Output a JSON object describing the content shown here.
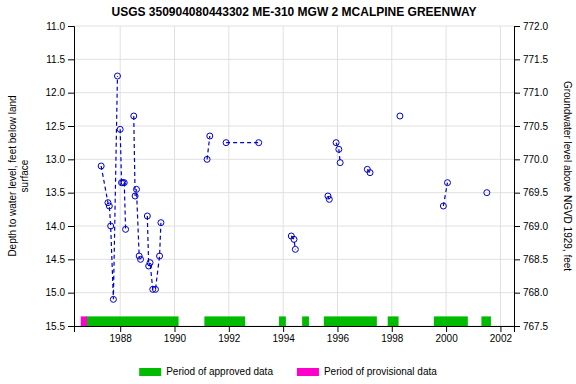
{
  "chart_data": {
    "type": "line",
    "title": "USGS 350904080443302 ME-310 MGW 2 MCALPINE GREENWAY",
    "ylabel": "Depth to water level, feet below land\nsurface",
    "y2label": "Groundwater level above NGVD 1929, feet",
    "xlim": [
      1986.3,
      2002.5
    ],
    "xticks": [
      1988,
      1990,
      1992,
      1994,
      1996,
      1998,
      2000,
      2002
    ],
    "ylim": [
      15.5,
      11.0
    ],
    "yticks": [
      {
        "value": 11.0,
        "label": "11.0"
      },
      11.5,
      {
        "value": 12.0,
        "label": "12.0"
      },
      12.5,
      {
        "value": 13.0,
        "label": "13.0"
      },
      13.5,
      {
        "value": 14.0,
        "label": "14.0"
      },
      14.5,
      {
        "value": 15.0,
        "label": "15.0"
      },
      15.5
    ],
    "y2lim": [
      767.5,
      772.0
    ],
    "y2ticks": [
      767.5,
      {
        "value": 768.0,
        "label": "768.0"
      },
      768.5,
      {
        "value": 769.0,
        "label": "769.0"
      },
      769.5,
      {
        "value": 770.0,
        "label": "770.0"
      },
      770.5,
      {
        "value": 771.0,
        "label": "771.0"
      },
      771.5,
      {
        "value": 772.0,
        "label": "772.0"
      }
    ],
    "grid": true,
    "series": [
      {
        "type": "line",
        "color": "#0000cc",
        "marker": "circle",
        "line_style": "dashed",
        "x": [
          1987.3,
          1987.55,
          1987.6,
          1987.65,
          1987.75,
          1987.9,
          null,
          1988.0,
          1988.05,
          1988.1,
          1988.15,
          1988.2,
          null,
          1988.5,
          1988.55,
          1988.6,
          1988.7,
          1988.75,
          null,
          1989.0,
          1989.05,
          1989.1,
          1989.2,
          1989.3,
          1989.45,
          1989.5,
          null,
          1991.2,
          1991.3,
          null,
          1991.9,
          1993.1,
          null,
          1994.3,
          1994.4,
          1994.45,
          null,
          1995.65,
          1995.7,
          null,
          1995.95,
          1996.05,
          1996.1,
          null,
          1997.1,
          1997.2,
          null,
          1998.3,
          null,
          1999.9,
          2000.05,
          null,
          2001.5
        ],
        "values": [
          13.1,
          13.65,
          13.7,
          14.0,
          15.1,
          11.75,
          null,
          12.55,
          13.35,
          13.35,
          13.35,
          14.05,
          null,
          12.35,
          13.55,
          13.45,
          14.45,
          14.5,
          null,
          13.85,
          14.6,
          14.55,
          14.95,
          14.95,
          14.45,
          13.95,
          null,
          13.0,
          12.65,
          null,
          12.75,
          12.75,
          null,
          14.15,
          14.2,
          14.35,
          null,
          13.55,
          13.6,
          null,
          12.75,
          12.85,
          13.05,
          null,
          13.15,
          13.2,
          null,
          12.35,
          null,
          13.7,
          13.35,
          null,
          13.5
        ]
      },
      {
        "type": "period",
        "name": "Period of approved data",
        "color": "#00bb00",
        "periods": [
          [
            1986.75,
            1990.15
          ],
          [
            1991.1,
            1992.6
          ],
          [
            1993.85,
            1994.1
          ],
          [
            1994.7,
            1994.95
          ],
          [
            1995.5,
            1997.45
          ],
          [
            1997.85,
            1998.25
          ],
          [
            1999.55,
            2000.8
          ],
          [
            2001.3,
            2001.65
          ]
        ]
      },
      {
        "type": "period",
        "name": "Period of provisional data",
        "color": "#ff00cc",
        "periods": [
          [
            1986.55,
            1986.78
          ]
        ]
      }
    ]
  }
}
